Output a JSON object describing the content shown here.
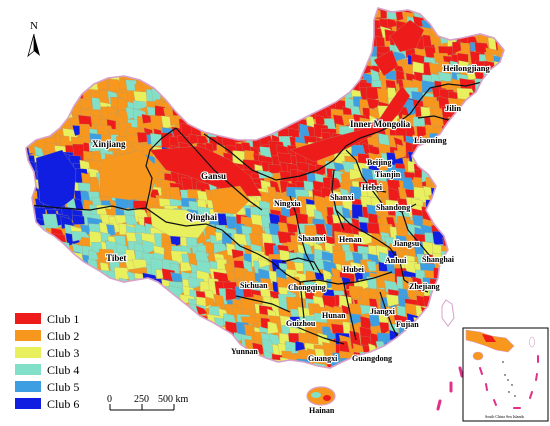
{
  "north_label": "N",
  "legend": [
    {
      "label": "Club 1",
      "color": "#ee1b1b"
    },
    {
      "label": "Club 2",
      "color": "#f7971d"
    },
    {
      "label": "Club 3",
      "color": "#e9f05e"
    },
    {
      "label": "Club 4",
      "color": "#83e0c8"
    },
    {
      "label": "Club 5",
      "color": "#3d9ee2"
    },
    {
      "label": "Club 6",
      "color": "#0f1ee0"
    }
  ],
  "scale": {
    "t0": "0",
    "t1": "250",
    "t2": "500 km"
  },
  "inset_caption": "South China Sea Islands",
  "provinces": [
    {
      "key": "xinjiang",
      "name": "Xinjiang"
    },
    {
      "key": "tibet",
      "name": "Tibet"
    },
    {
      "key": "qinghai",
      "name": "Qinghai"
    },
    {
      "key": "gansu",
      "name": "Gansu"
    },
    {
      "key": "inner_mongolia",
      "name": "Inner Mongolia"
    },
    {
      "key": "heilongjiang",
      "name": "Heilongjiang"
    },
    {
      "key": "jilin",
      "name": "Jilin"
    },
    {
      "key": "liaoning",
      "name": "Liaoning"
    },
    {
      "key": "beijing",
      "name": "Beijing"
    },
    {
      "key": "tianjin",
      "name": "Tianjin"
    },
    {
      "key": "hebei",
      "name": "Hebei"
    },
    {
      "key": "shanxi",
      "name": "Shanxi"
    },
    {
      "key": "ningxia",
      "name": "Ningxia"
    },
    {
      "key": "shandong",
      "name": "Shandong"
    },
    {
      "key": "shaanxi",
      "name": "Shaanxi"
    },
    {
      "key": "henan",
      "name": "Henan"
    },
    {
      "key": "jiangsu",
      "name": "Jiangsu"
    },
    {
      "key": "anhui",
      "name": "Anhui"
    },
    {
      "key": "shanghai",
      "name": "Shanghai"
    },
    {
      "key": "hubei",
      "name": "Hubei"
    },
    {
      "key": "sichuan",
      "name": "Sichuan"
    },
    {
      "key": "chongqing",
      "name": "Chongqing"
    },
    {
      "key": "zhejiang",
      "name": "Zhejiang"
    },
    {
      "key": "hunan",
      "name": "Hunan"
    },
    {
      "key": "jiangxi",
      "name": "Jiangxi"
    },
    {
      "key": "guizhou",
      "name": "Guizhou"
    },
    {
      "key": "fujian",
      "name": "Fujian"
    },
    {
      "key": "yunnan",
      "name": "Yunnan"
    },
    {
      "key": "guangxi",
      "name": "Guangxi"
    },
    {
      "key": "guangdong",
      "name": "Guangdong"
    },
    {
      "key": "hainan",
      "name": "Hainan"
    }
  ]
}
